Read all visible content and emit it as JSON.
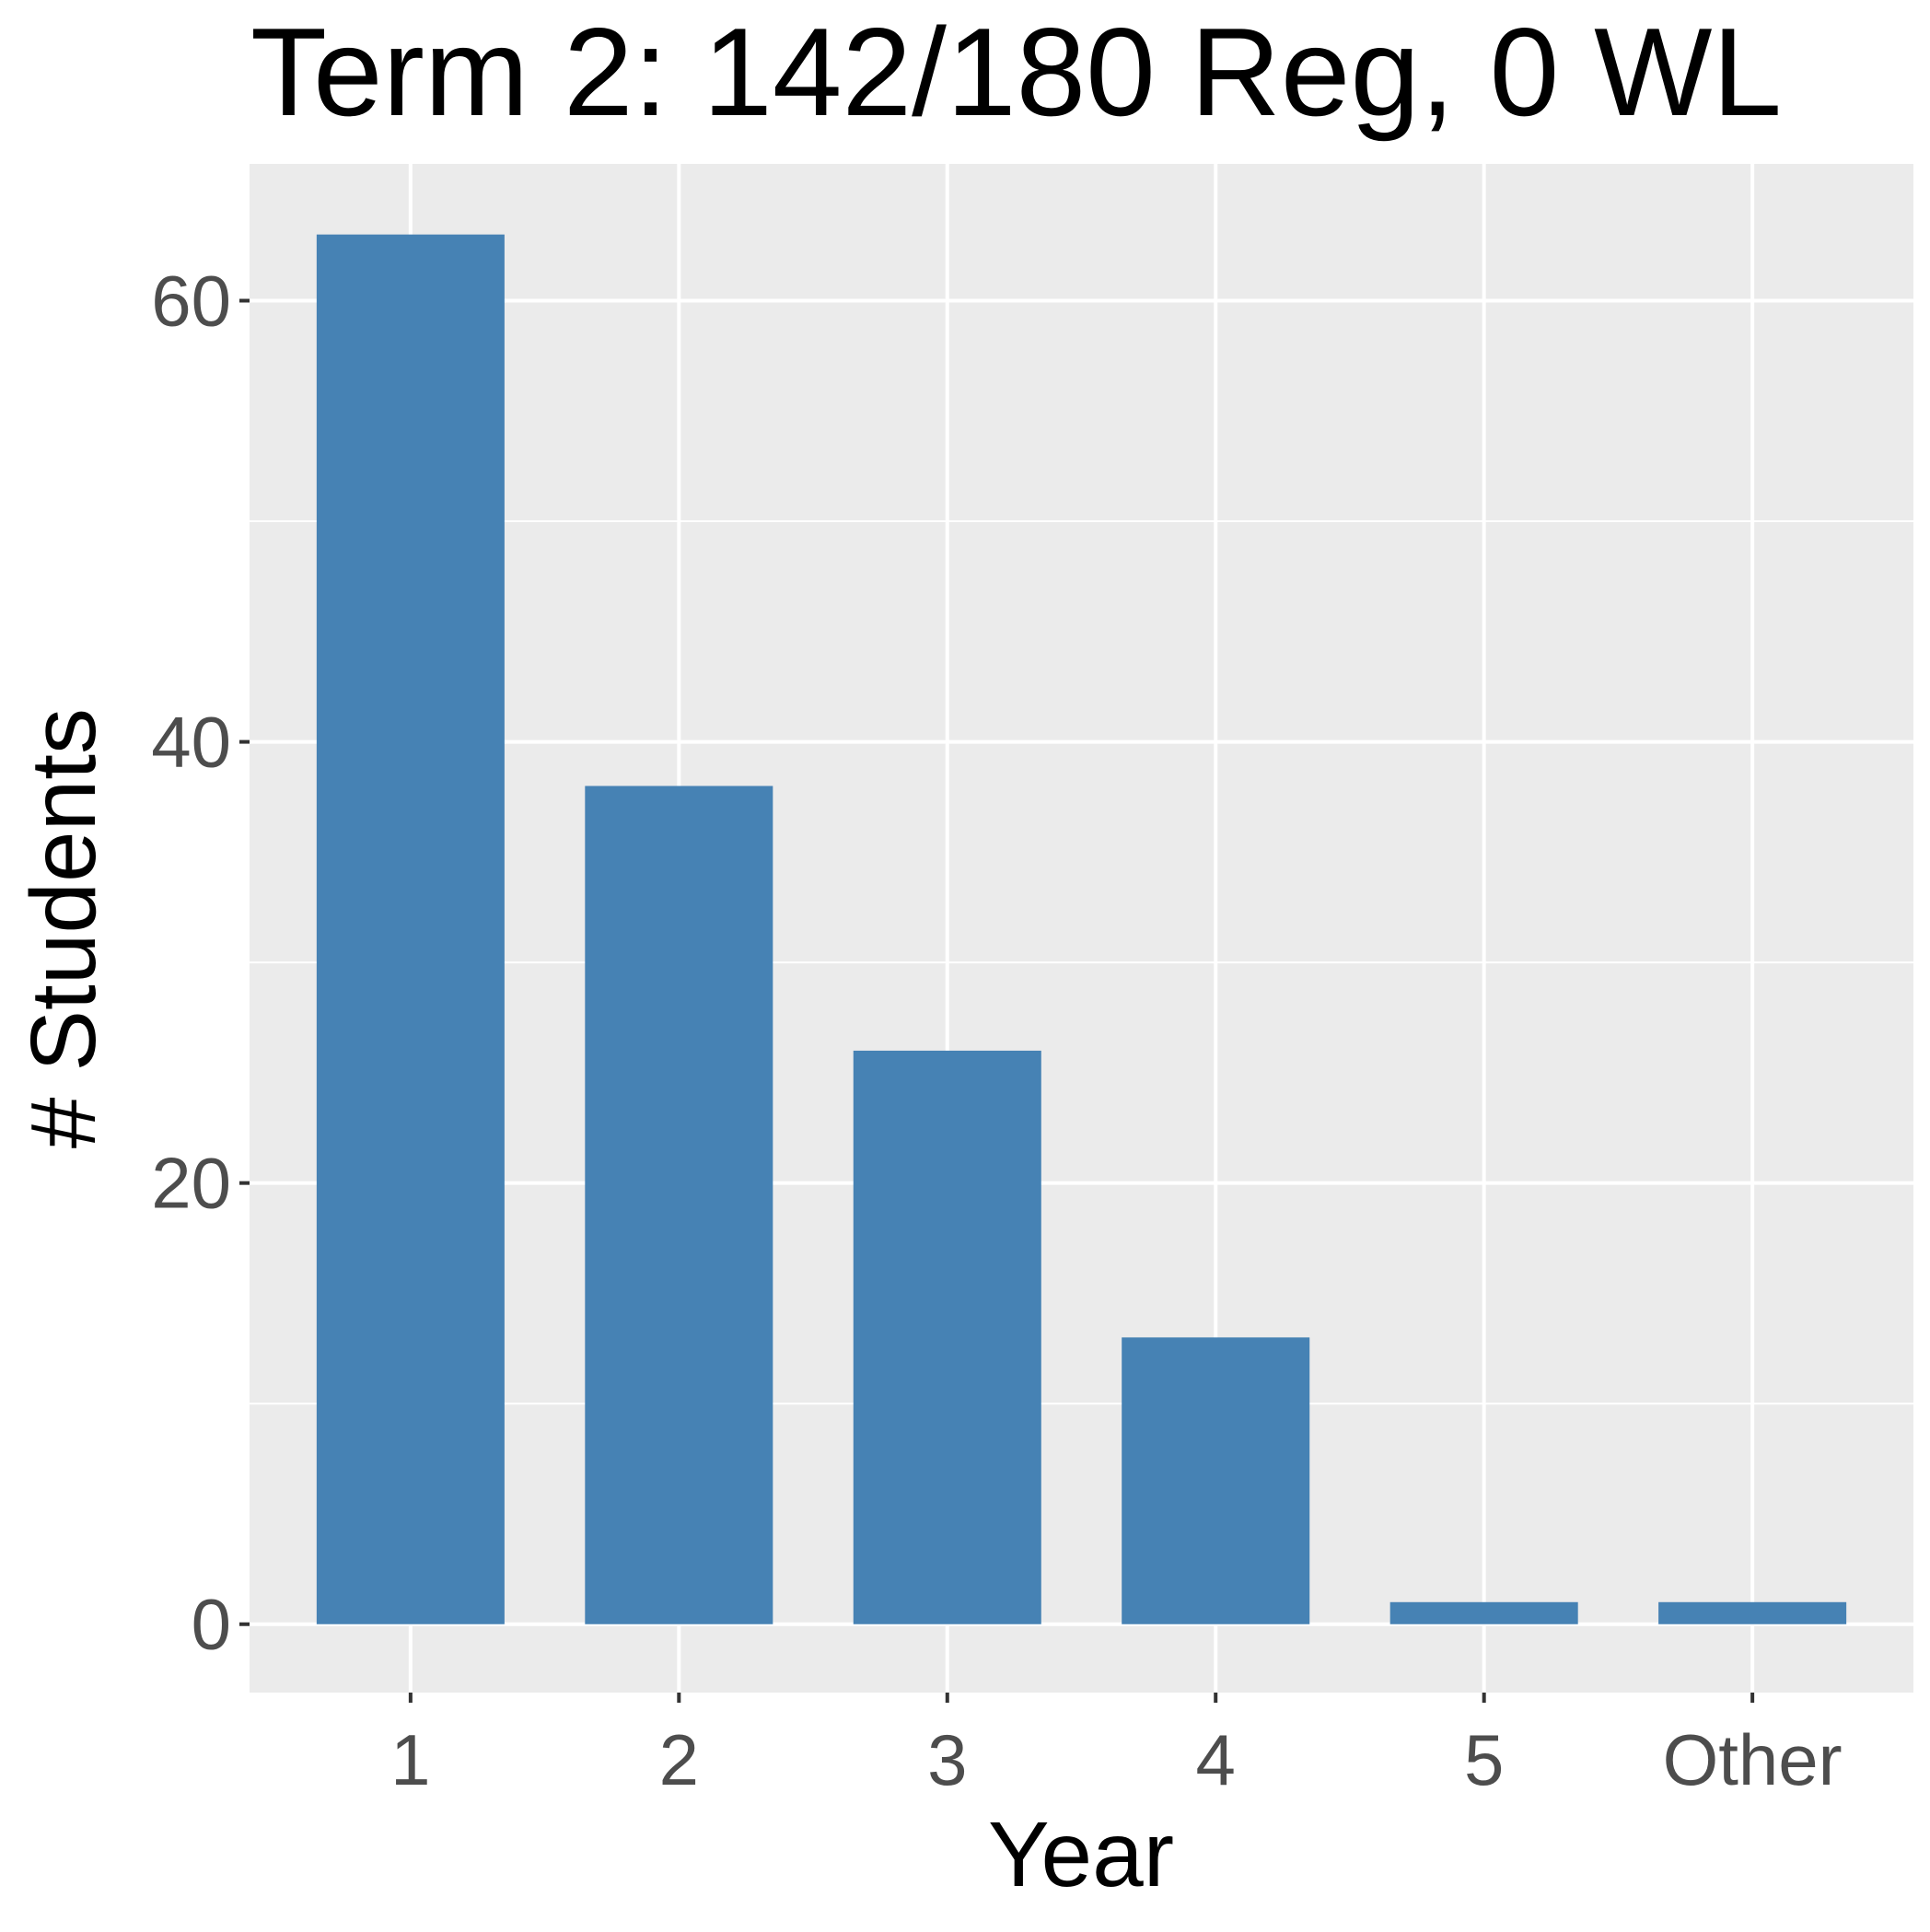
{
  "chart_data": {
    "type": "bar",
    "title": "Term 2: 142/180 Reg, 0 WL",
    "xlabel": "Year",
    "ylabel": "# Students",
    "categories": [
      "1",
      "2",
      "3",
      "4",
      "5",
      "Other"
    ],
    "values": [
      63,
      38,
      26,
      13,
      1,
      1
    ],
    "ylim": [
      -3.1,
      66.2
    ],
    "yticks": [
      0,
      20,
      40,
      60
    ],
    "ytick_labels": [
      "0",
      "20",
      "40",
      "60"
    ],
    "y_minor_gridlines": [
      10,
      30,
      50
    ],
    "grid": true,
    "legend": "none",
    "colors": {
      "bar": "#4682b4",
      "panel_background": "#ebebeb",
      "gridline": "#ffffff",
      "tick_label": "#4d4d4d",
      "tick_mark": "#333333"
    }
  }
}
